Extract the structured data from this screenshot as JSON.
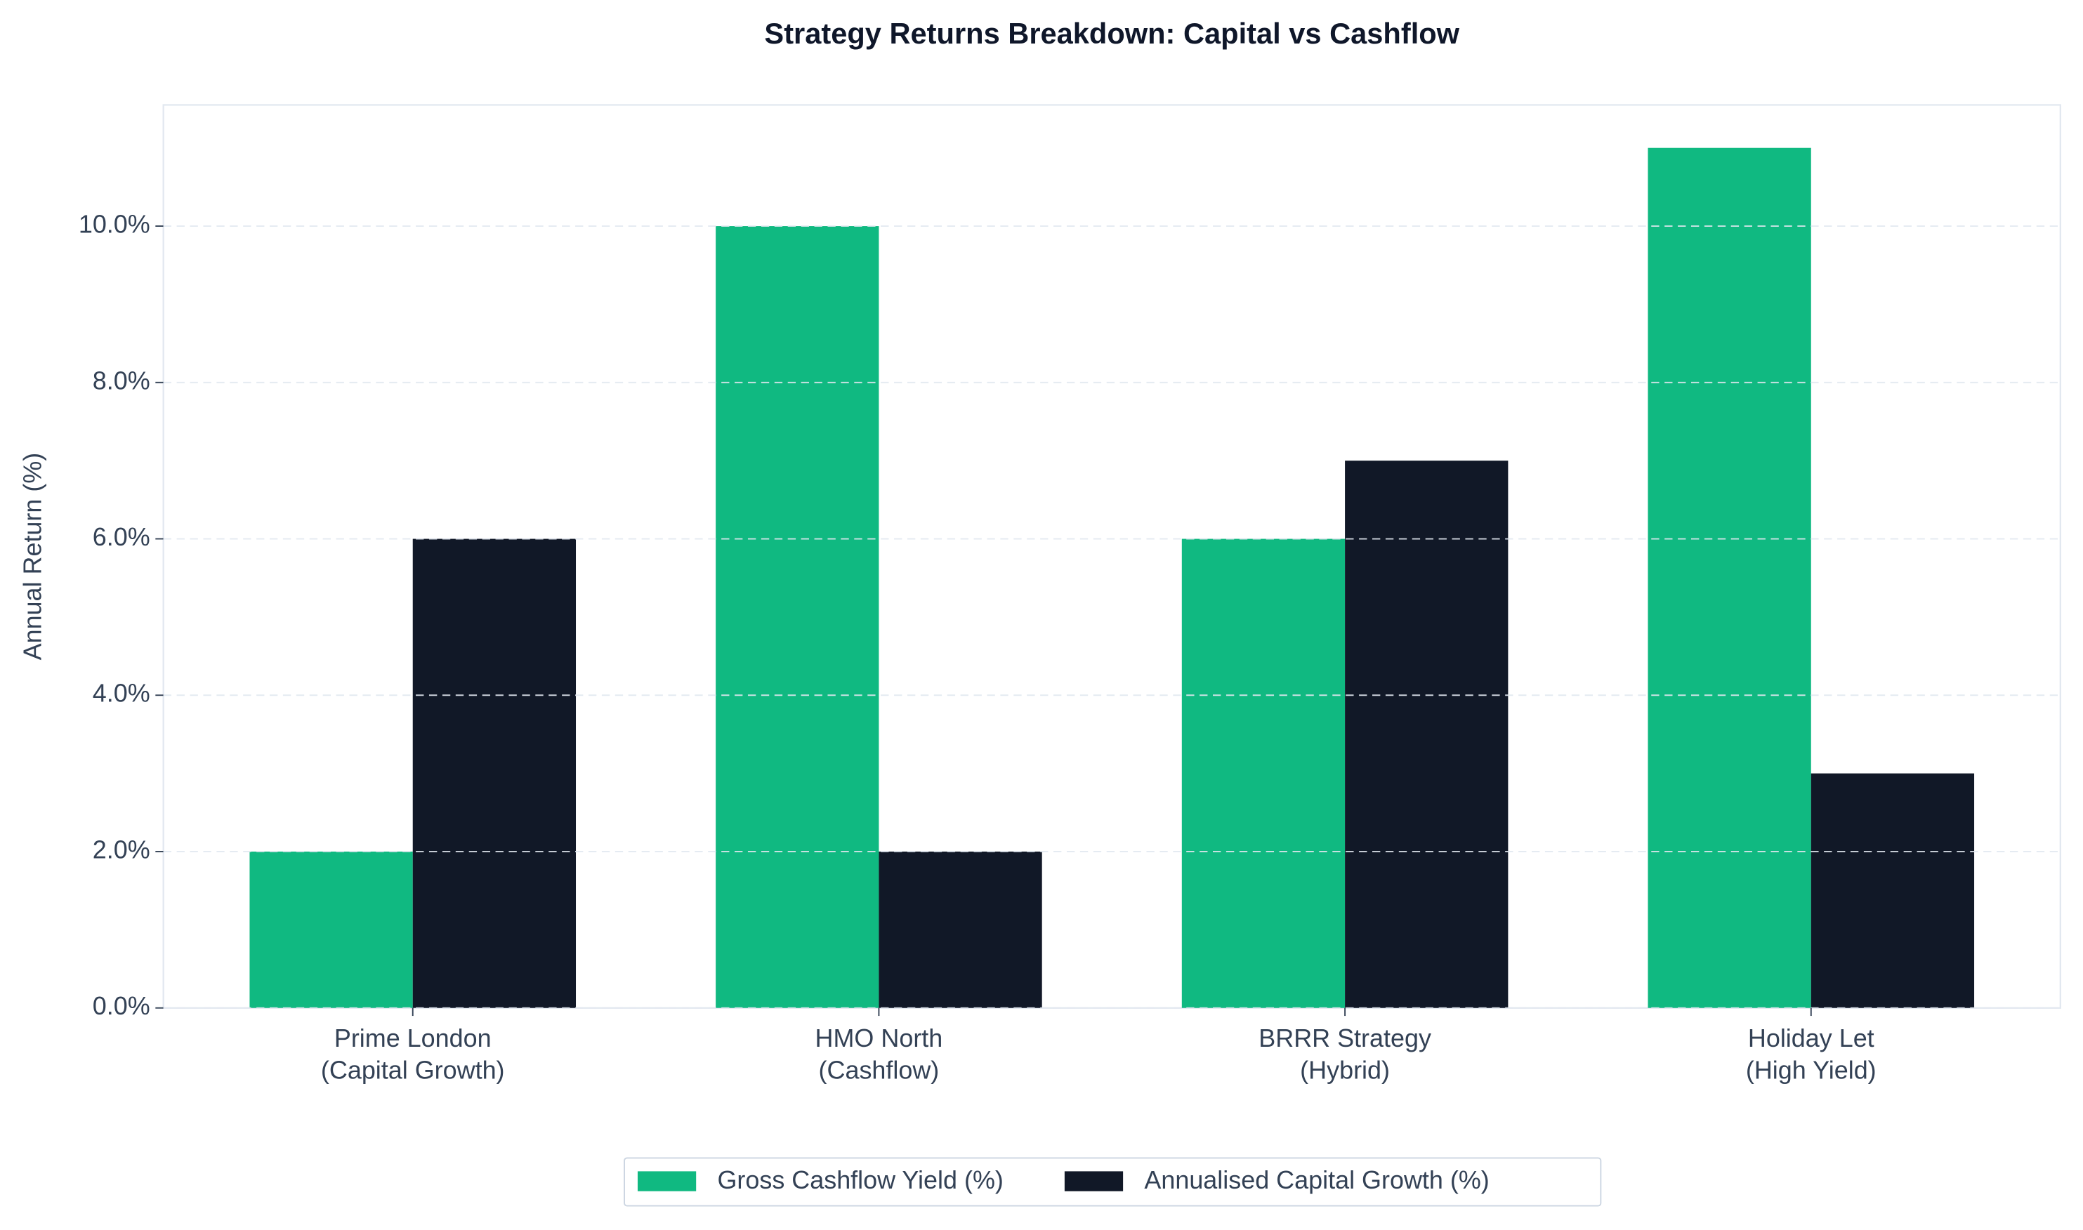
{
  "chart_data": {
    "type": "bar",
    "title": "Strategy Returns Breakdown: Capital vs Cashflow",
    "y_label": "Annual Return (%)",
    "categories": [
      "Prime London\n(Capital Growth)",
      "HMO North\n(Cashflow)",
      "BRRR Strategy\n(Hybrid)",
      "Holiday Let\n(High Yield)"
    ],
    "series": [
      {
        "name": "Gross Cashflow Yield (%)",
        "color": "#10b981",
        "values": [
          2,
          10,
          6,
          11
        ]
      },
      {
        "name": "Annualised Capital Growth (%)",
        "color": "#111827",
        "values": [
          6,
          2,
          7,
          3
        ]
      }
    ],
    "ylim": [
      0,
      11.55
    ],
    "yticks": [
      {
        "value": 0,
        "label": "0.0%"
      },
      {
        "value": 2,
        "label": "2.0%"
      },
      {
        "value": 4,
        "label": "4.0%"
      },
      {
        "value": 6,
        "label": "6.0%"
      },
      {
        "value": 8,
        "label": "8.0%"
      },
      {
        "value": 10,
        "label": "10.0%"
      }
    ],
    "grid": true,
    "legend": "bottom"
  }
}
